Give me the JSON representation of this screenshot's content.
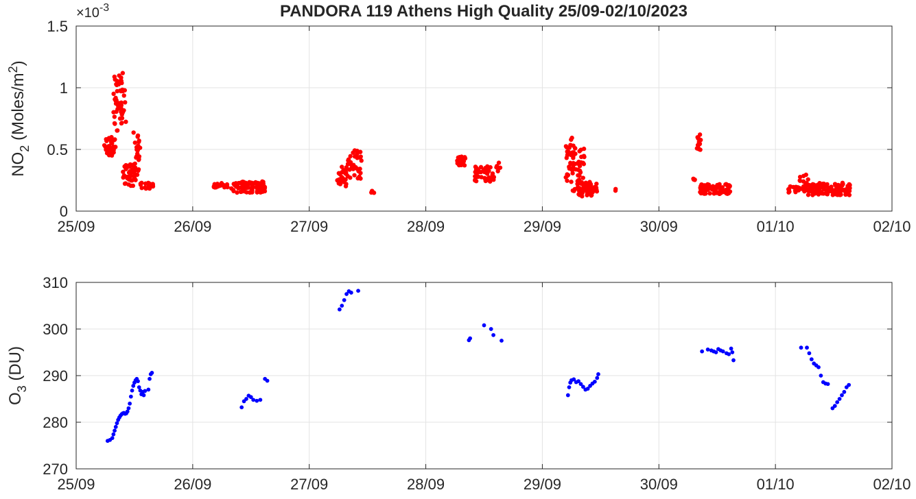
{
  "title": "PANDORA 119 Athens High Quality 25/09-02/10/2023",
  "colors": {
    "no2": "#ff0000",
    "o3": "#0000ff",
    "grid": "#e3e3e3",
    "axis": "#262626"
  },
  "chart_data": [
    {
      "type": "scatter",
      "name": "no2-panel",
      "ylabel": "NO2 (Moles/m2)",
      "ylabel_parts": {
        "base": "NO",
        "sub": "2",
        "mid": " (Moles/m",
        "sup": "2",
        "end": ")"
      },
      "exponent_label": "×10^-3",
      "exponent_parts": {
        "base": "×10",
        "sup": "-3"
      },
      "x_ticks": [
        "25/09",
        "26/09",
        "27/09",
        "28/09",
        "29/09",
        "30/09",
        "01/10",
        "02/10"
      ],
      "xlim": [
        0,
        7
      ],
      "ylim": [
        0,
        1.5
      ],
      "y_ticks": [
        0,
        0.5,
        1,
        1.5
      ],
      "y_tick_labels": [
        "0",
        "0.5",
        "1",
        "1.5"
      ],
      "grid": true,
      "clusters": [
        {
          "x0": 0.24,
          "x1": 0.34,
          "y0": 0.45,
          "y1": 0.6,
          "n": 40
        },
        {
          "x0": 0.32,
          "x1": 0.42,
          "y0": 0.65,
          "y1": 1.12,
          "n": 45
        },
        {
          "x0": 0.38,
          "x1": 0.43,
          "y0": 0.68,
          "y1": 0.82,
          "n": 8
        },
        {
          "x0": 0.4,
          "x1": 0.49,
          "y0": 0.2,
          "y1": 0.38,
          "n": 35
        },
        {
          "x0": 0.49,
          "x1": 0.55,
          "y0": 0.25,
          "y1": 0.64,
          "n": 30
        },
        {
          "x0": 0.55,
          "x1": 0.66,
          "y0": 0.18,
          "y1": 0.23,
          "n": 20
        },
        {
          "x0": 1.18,
          "x1": 1.32,
          "y0": 0.19,
          "y1": 0.23,
          "n": 20
        },
        {
          "x0": 1.33,
          "x1": 1.63,
          "y0": 0.15,
          "y1": 0.24,
          "n": 80
        },
        {
          "x0": 2.24,
          "x1": 2.32,
          "y0": 0.2,
          "y1": 0.36,
          "n": 25
        },
        {
          "x0": 2.32,
          "x1": 2.45,
          "y0": 0.25,
          "y1": 0.5,
          "n": 35
        },
        {
          "x0": 2.48,
          "x1": 2.56,
          "y0": 0.14,
          "y1": 0.18,
          "n": 3
        },
        {
          "x0": 3.27,
          "x1": 3.34,
          "y0": 0.37,
          "y1": 0.45,
          "n": 20
        },
        {
          "x0": 3.42,
          "x1": 3.6,
          "y0": 0.24,
          "y1": 0.37,
          "n": 45
        },
        {
          "x0": 3.6,
          "x1": 3.64,
          "y0": 0.32,
          "y1": 0.4,
          "n": 6
        },
        {
          "x0": 4.2,
          "x1": 4.27,
          "y0": 0.23,
          "y1": 0.61,
          "n": 30
        },
        {
          "x0": 4.26,
          "x1": 4.36,
          "y0": 0.15,
          "y1": 0.52,
          "n": 40
        },
        {
          "x0": 4.3,
          "x1": 4.48,
          "y0": 0.12,
          "y1": 0.24,
          "n": 55
        },
        {
          "x0": 4.59,
          "x1": 4.63,
          "y0": 0.16,
          "y1": 0.18,
          "n": 2
        },
        {
          "x0": 5.29,
          "x1": 5.31,
          "y0": 0.24,
          "y1": 0.27,
          "n": 4
        },
        {
          "x0": 5.32,
          "x1": 5.36,
          "y0": 0.49,
          "y1": 0.64,
          "n": 12
        },
        {
          "x0": 5.35,
          "x1": 5.62,
          "y0": 0.14,
          "y1": 0.22,
          "n": 90
        },
        {
          "x0": 6.1,
          "x1": 6.2,
          "y0": 0.15,
          "y1": 0.2,
          "n": 15
        },
        {
          "x0": 6.2,
          "x1": 6.3,
          "y0": 0.16,
          "y1": 0.3,
          "n": 25
        },
        {
          "x0": 6.28,
          "x1": 6.64,
          "y0": 0.13,
          "y1": 0.23,
          "n": 110
        }
      ]
    },
    {
      "type": "scatter",
      "name": "o3-panel",
      "ylabel": "O3 (DU)",
      "ylabel_parts": {
        "base": "O",
        "sub": "3",
        "end": " (DU)"
      },
      "x_ticks": [
        "25/09",
        "26/09",
        "27/09",
        "28/09",
        "29/09",
        "30/09",
        "01/10",
        "02/10"
      ],
      "xlim": [
        0,
        7
      ],
      "ylim": [
        270,
        310
      ],
      "y_ticks": [
        270,
        280,
        290,
        300,
        310
      ],
      "y_tick_labels": [
        "270",
        "280",
        "290",
        "300",
        "310"
      ],
      "grid": true,
      "points": [
        [
          0.27,
          276.0
        ],
        [
          0.29,
          276.2
        ],
        [
          0.31,
          276.6
        ],
        [
          0.32,
          277.4
        ],
        [
          0.33,
          278.2
        ],
        [
          0.34,
          279.0
        ],
        [
          0.35,
          279.8
        ],
        [
          0.36,
          280.5
        ],
        [
          0.37,
          281.0
        ],
        [
          0.38,
          281.4
        ],
        [
          0.39,
          281.7
        ],
        [
          0.4,
          281.9
        ],
        [
          0.41,
          282.0
        ],
        [
          0.42,
          281.8
        ],
        [
          0.43,
          281.9
        ],
        [
          0.44,
          282.3
        ],
        [
          0.45,
          283.0
        ],
        [
          0.46,
          284.0
        ],
        [
          0.47,
          285.5
        ],
        [
          0.48,
          286.8
        ],
        [
          0.49,
          287.8
        ],
        [
          0.5,
          288.5
        ],
        [
          0.51,
          289.0
        ],
        [
          0.52,
          289.3
        ],
        [
          0.53,
          288.8
        ],
        [
          0.54,
          287.5
        ],
        [
          0.55,
          286.8
        ],
        [
          0.56,
          286.0
        ],
        [
          0.57,
          286.5
        ],
        [
          0.58,
          285.8
        ],
        [
          0.59,
          286.7
        ],
        [
          0.62,
          287.0
        ],
        [
          0.63,
          289.3
        ],
        [
          0.64,
          290.3
        ],
        [
          0.65,
          290.6
        ],
        [
          1.42,
          283.2
        ],
        [
          1.44,
          284.5
        ],
        [
          1.46,
          285.0
        ],
        [
          1.48,
          285.7
        ],
        [
          1.5,
          285.4
        ],
        [
          1.52,
          284.8
        ],
        [
          1.55,
          284.6
        ],
        [
          1.58,
          284.8
        ],
        [
          1.62,
          289.3
        ],
        [
          1.64,
          288.9
        ],
        [
          2.26,
          304.2
        ],
        [
          2.28,
          305.0
        ],
        [
          2.3,
          306.2
        ],
        [
          2.32,
          307.5
        ],
        [
          2.34,
          308.1
        ],
        [
          2.36,
          307.8
        ],
        [
          2.42,
          308.2
        ],
        [
          3.37,
          297.6
        ],
        [
          3.38,
          298.0
        ],
        [
          3.5,
          300.8
        ],
        [
          3.56,
          300.0
        ],
        [
          3.58,
          298.7
        ],
        [
          3.65,
          297.5
        ],
        [
          4.22,
          285.8
        ],
        [
          4.23,
          287.5
        ],
        [
          4.24,
          288.5
        ],
        [
          4.25,
          289.0
        ],
        [
          4.27,
          289.2
        ],
        [
          4.29,
          288.6
        ],
        [
          4.31,
          288.8
        ],
        [
          4.33,
          288.2
        ],
        [
          4.35,
          287.6
        ],
        [
          4.37,
          287.0
        ],
        [
          4.39,
          287.2
        ],
        [
          4.41,
          287.8
        ],
        [
          4.43,
          288.3
        ],
        [
          4.45,
          288.7
        ],
        [
          4.47,
          289.5
        ],
        [
          4.48,
          290.3
        ],
        [
          5.37,
          295.2
        ],
        [
          5.42,
          295.6
        ],
        [
          5.45,
          295.4
        ],
        [
          5.47,
          295.2
        ],
        [
          5.49,
          295.0
        ],
        [
          5.51,
          295.7
        ],
        [
          5.53,
          295.4
        ],
        [
          5.55,
          295.2
        ],
        [
          5.58,
          294.8
        ],
        [
          5.6,
          294.6
        ],
        [
          5.62,
          295.8
        ],
        [
          5.63,
          295.0
        ],
        [
          5.64,
          293.3
        ],
        [
          6.22,
          296.0
        ],
        [
          6.27,
          296.0
        ],
        [
          6.29,
          294.8
        ],
        [
          6.31,
          293.5
        ],
        [
          6.33,
          292.6
        ],
        [
          6.35,
          292.2
        ],
        [
          6.37,
          291.8
        ],
        [
          6.39,
          290.0
        ],
        [
          6.41,
          288.6
        ],
        [
          6.43,
          288.3
        ],
        [
          6.45,
          288.2
        ],
        [
          6.49,
          283.0
        ],
        [
          6.51,
          283.5
        ],
        [
          6.53,
          284.3
        ],
        [
          6.55,
          285.0
        ],
        [
          6.57,
          285.8
        ],
        [
          6.59,
          286.5
        ],
        [
          6.61,
          287.5
        ],
        [
          6.63,
          288.0
        ]
      ]
    }
  ]
}
